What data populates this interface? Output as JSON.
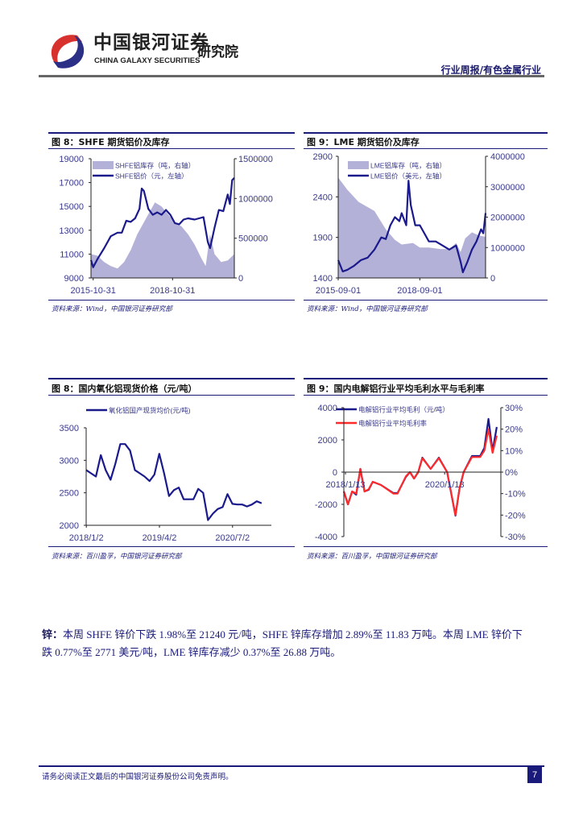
{
  "header": {
    "logo_cn": "中国银河证券",
    "logo_en": "CHINA GALAXY SECURITIES",
    "institute": "研究院",
    "report_type": "行业周报/有色金属行业"
  },
  "colors": {
    "navy": "#1a1a8c",
    "area": "#b4b1d8",
    "red": "#ff2a2a",
    "text": "#1a1a7a"
  },
  "figures": [
    {
      "title": "图 8：SHFE 期货铝价及库存",
      "source": "资料来源：Wind，中国银河证券研究部"
    },
    {
      "title": "图 9：LME 期货铝价及库存",
      "source": "资料来源：Wind，中国银河证券研究部"
    },
    {
      "title": "图 8：国内氧化铝现货价格（元/吨）",
      "source": "资料来源：百川盈孚，中国银河证券研究部"
    },
    {
      "title": "图 9：国内电解铝行业平均毛利水平与毛利率",
      "source": "资料来源：百川盈孚，中国银河证券研究部"
    }
  ],
  "chart_data": [
    {
      "type": "line",
      "xlim": [
        "2015-10",
        "2021-03"
      ],
      "x_ticks": [
        "2015-10-31",
        "2018-10-31"
      ],
      "left_axis": {
        "min": 9000,
        "max": 19000,
        "ticks": [
          "9000",
          "11000",
          "13000",
          "15000",
          "17000",
          "19000"
        ]
      },
      "right_axis": {
        "min": 0,
        "max": 1500000,
        "ticks": [
          "0",
          "500000",
          "1000000",
          "1500000"
        ]
      },
      "series": [
        {
          "name": "SHFE铝库存（吨，右轴）",
          "kind": "area",
          "axis": "right",
          "color": "#b4b1d8",
          "x": [
            "2015-10",
            "2016-01",
            "2016-04",
            "2016-07",
            "2016-10",
            "2017-01",
            "2017-04",
            "2017-07",
            "2017-10",
            "2018-01",
            "2018-03",
            "2018-06",
            "2018-09",
            "2018-12",
            "2019-03",
            "2019-06",
            "2019-09",
            "2019-12",
            "2020-02",
            "2020-04",
            "2020-06",
            "2020-09",
            "2020-12",
            "2021-03"
          ],
          "y": [
            300000,
            280000,
            200000,
            150000,
            120000,
            200000,
            350000,
            550000,
            700000,
            850000,
            950000,
            900000,
            800000,
            700000,
            650000,
            550000,
            420000,
            250000,
            150000,
            550000,
            300000,
            200000,
            220000,
            300000
          ]
        },
        {
          "name": "SHFE铝价（元，左轴）",
          "kind": "line",
          "axis": "left",
          "color": "#1a1a8c",
          "x": [
            "2015-10",
            "2015-11",
            "2016-01",
            "2016-04",
            "2016-07",
            "2016-10",
            "2016-12",
            "2017-02",
            "2017-04",
            "2017-06",
            "2017-08",
            "2017-09",
            "2017-10",
            "2017-12",
            "2018-02",
            "2018-04",
            "2018-06",
            "2018-08",
            "2018-10",
            "2018-12",
            "2019-02",
            "2019-04",
            "2019-06",
            "2019-09",
            "2019-11",
            "2020-01",
            "2020-03",
            "2020-04",
            "2020-06",
            "2020-08",
            "2020-10",
            "2020-12",
            "2021-01",
            "2021-02",
            "2021-03"
          ],
          "y": [
            10500,
            9900,
            10600,
            11500,
            12500,
            12800,
            12800,
            13800,
            13700,
            14000,
            14800,
            16500,
            16300,
            14800,
            14300,
            14500,
            14300,
            14700,
            14300,
            13600,
            13500,
            13900,
            14000,
            13900,
            14000,
            14100,
            12000,
            11500,
            13200,
            14700,
            14600,
            16000,
            15200,
            17200,
            17400
          ]
        }
      ]
    },
    {
      "type": "line",
      "xlim": [
        "2015-09",
        "2021-02"
      ],
      "x_ticks": [
        "2015-09-01",
        "2018-09-01"
      ],
      "left_axis": {
        "min": 1400,
        "max": 2900,
        "ticks": [
          "1400",
          "1900",
          "2400",
          "2900"
        ]
      },
      "right_axis": {
        "min": 0,
        "max": 4000000,
        "ticks": [
          "0",
          "1000000",
          "2000000",
          "3000000",
          "4000000"
        ]
      },
      "series": [
        {
          "name": "LME铝库存（吨，右轴）",
          "kind": "area",
          "axis": "right",
          "color": "#b4b1d8",
          "x": [
            "2015-09",
            "2016-01",
            "2016-06",
            "2017-01",
            "2017-06",
            "2017-10",
            "2018-01",
            "2018-06",
            "2018-09",
            "2019-01",
            "2019-06",
            "2019-10",
            "2020-01",
            "2020-03",
            "2020-05",
            "2020-08",
            "2020-11",
            "2021-02"
          ],
          "y": [
            3300000,
            2900000,
            2500000,
            2200000,
            1600000,
            1250000,
            1100000,
            1150000,
            1000000,
            1000000,
            950000,
            950000,
            1150000,
            850000,
            1300000,
            1500000,
            1400000,
            1350000
          ]
        },
        {
          "name": "LME铝价（美元，左轴）",
          "kind": "line",
          "axis": "left",
          "color": "#1a1a8c",
          "x": [
            "2015-09",
            "2015-11",
            "2016-01",
            "2016-04",
            "2016-07",
            "2016-10",
            "2017-01",
            "2017-04",
            "2017-06",
            "2017-08",
            "2017-10",
            "2017-12",
            "2018-01",
            "2018-03",
            "2018-04",
            "2018-05",
            "2018-07",
            "2018-09",
            "2018-11",
            "2019-01",
            "2019-04",
            "2019-07",
            "2019-10",
            "2020-01",
            "2020-03",
            "2020-04",
            "2020-06",
            "2020-08",
            "2020-10",
            "2020-12",
            "2021-01",
            "2021-02"
          ],
          "y": [
            1620,
            1480,
            1500,
            1550,
            1620,
            1650,
            1750,
            1900,
            1880,
            2050,
            2150,
            2100,
            2200,
            2050,
            2600,
            2300,
            2050,
            2050,
            1950,
            1850,
            1850,
            1800,
            1750,
            1800,
            1600,
            1470,
            1600,
            1750,
            1850,
            2000,
            1950,
            2200
          ]
        }
      ]
    },
    {
      "type": "line",
      "xlim": [
        "2018-01",
        "2021-03"
      ],
      "x_ticks": [
        "2018/1/2",
        "2019/4/2",
        "2020/7/2"
      ],
      "left_axis": {
        "min": 2000,
        "max": 3500,
        "ticks": [
          "2000",
          "2500",
          "3000",
          "3500"
        ]
      },
      "series": [
        {
          "name": "氧化铝国产现货均价(元/吨)",
          "kind": "line",
          "axis": "left",
          "color": "#1a1a8c",
          "x": [
            "2018-01",
            "2018-02",
            "2018-03",
            "2018-04",
            "2018-05",
            "2018-06",
            "2018-07",
            "2018-08",
            "2018-09",
            "2018-10",
            "2018-11",
            "2018-12",
            "2019-01",
            "2019-02",
            "2019-03",
            "2019-04",
            "2019-05",
            "2019-06",
            "2019-07",
            "2019-08",
            "2019-09",
            "2019-10",
            "2019-11",
            "2019-12",
            "2020-01",
            "2020-02",
            "2020-03",
            "2020-04",
            "2020-05",
            "2020-06",
            "2020-07",
            "2020-08",
            "2020-09",
            "2020-10",
            "2020-11",
            "2020-12",
            "2021-01"
          ],
          "y": [
            2850,
            2800,
            2750,
            3080,
            2850,
            2700,
            2950,
            3250,
            3250,
            3150,
            2850,
            2800,
            2750,
            2680,
            2780,
            3100,
            2800,
            2450,
            2540,
            2580,
            2400,
            2400,
            2400,
            2560,
            2500,
            2080,
            2180,
            2250,
            2280,
            2480,
            2330,
            2320,
            2320,
            2290,
            2320,
            2370,
            2340
          ]
        }
      ]
    },
    {
      "type": "line",
      "xlim": [
        "2018-01",
        "2021-03"
      ],
      "x_ticks": [
        "2018/1/13",
        "2020/1/13"
      ],
      "left_axis": {
        "min": -4000,
        "max": 4000,
        "ticks": [
          "-4000",
          "-2000",
          "0",
          "2000",
          "4000"
        ]
      },
      "right_axis": {
        "min": -30,
        "max": 30,
        "ticks": [
          "-30%",
          "-20%",
          "-10%",
          "0%",
          "10%",
          "20%",
          "30%"
        ]
      },
      "series": [
        {
          "name": "电解铝行业平均毛利（元/吨）",
          "kind": "line",
          "axis": "left",
          "color": "#1a1a8c",
          "x": [
            "2018-01",
            "2018-02",
            "2018-03",
            "2018-04",
            "2018-05",
            "2018-06",
            "2018-07",
            "2018-08",
            "2018-10",
            "2019-01",
            "2019-02",
            "2019-04",
            "2019-05",
            "2019-06",
            "2019-07",
            "2019-08",
            "2019-10",
            "2019-12",
            "2020-02",
            "2020-04",
            "2020-05",
            "2020-06",
            "2020-08",
            "2020-10",
            "2020-11",
            "2020-12",
            "2021-01",
            "2021-02"
          ],
          "y": [
            -1200,
            -2000,
            -1200,
            -1400,
            200,
            -1200,
            -1100,
            -600,
            -800,
            -1300,
            -1300,
            -300,
            0,
            -400,
            0,
            900,
            200,
            900,
            0,
            -2700,
            -1000,
            0,
            1000,
            1000,
            1500,
            3300,
            1300,
            2800
          ]
        },
        {
          "name": "电解铝行业平均毛利率",
          "kind": "line",
          "axis": "right",
          "color": "#ff2a2a",
          "x": [
            "2018-01",
            "2018-02",
            "2018-03",
            "2018-04",
            "2018-05",
            "2018-06",
            "2018-07",
            "2018-08",
            "2018-10",
            "2019-01",
            "2019-02",
            "2019-04",
            "2019-05",
            "2019-06",
            "2019-07",
            "2019-08",
            "2019-10",
            "2019-12",
            "2020-02",
            "2020-04",
            "2020-05",
            "2020-06",
            "2020-08",
            "2020-10",
            "2020-11",
            "2020-12",
            "2021-01",
            "2021-02"
          ],
          "y": [
            -9,
            -15,
            -9,
            -10,
            1.5,
            -9,
            -8,
            -4.5,
            -6,
            -10,
            -10,
            -2,
            0,
            -3,
            0,
            6.5,
            1.5,
            6.5,
            0,
            -20,
            -7.5,
            0,
            7,
            7,
            10,
            20,
            9,
            17
          ]
        }
      ]
    }
  ],
  "body": {
    "lead": "锌：",
    "text": "本周 SHFE 锌价下跌 1.98%至 21240 元/吨，SHFE 锌库存增加 2.89%至 11.83 万吨。本周 LME 锌价下跌 0.77%至 2771 美元/吨，LME 锌库存减少 0.37%至 26.88 万吨。"
  },
  "footer": {
    "disclaimer": "请务必阅读正文最后的中国银河证券股份公司免责声明。",
    "page": "7"
  }
}
